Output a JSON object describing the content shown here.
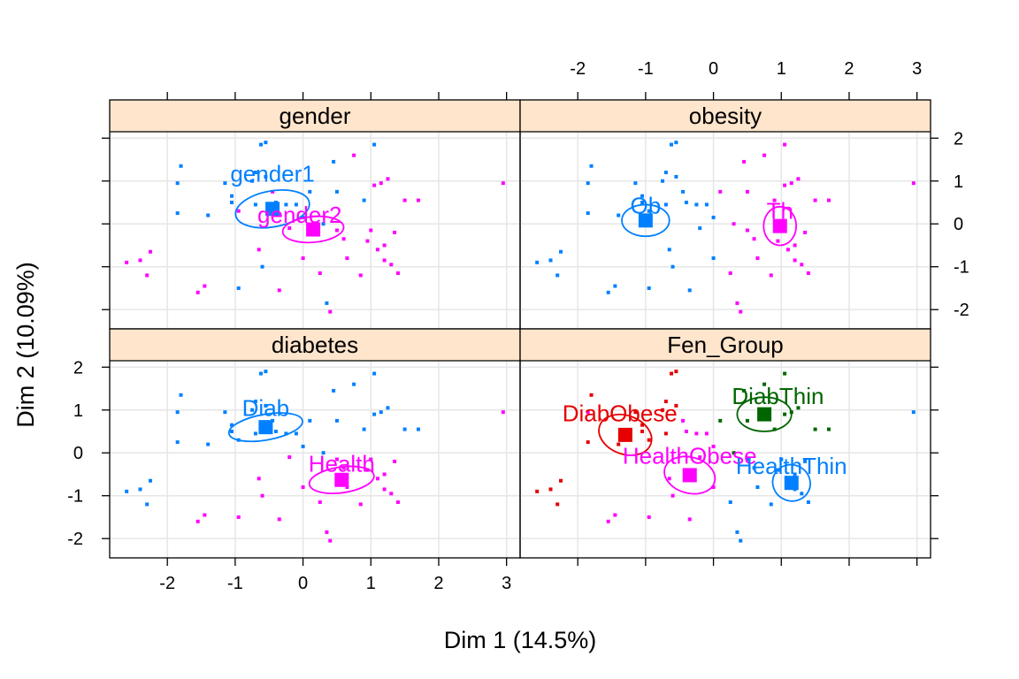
{
  "chart_data": {
    "type": "scatter",
    "xlabel": "Dim 1 (14.5%)",
    "ylabel": "Dim 2 (10.09%)",
    "xlim": [
      -2.85,
      3.2
    ],
    "ylim": [
      -2.45,
      2.15
    ],
    "x_ticks": [
      -2,
      -1,
      0,
      1,
      2,
      3
    ],
    "y_ticks": [
      -2,
      -1,
      0,
      1,
      2
    ],
    "x_tick_labels": [
      "-2",
      "-1",
      "0",
      "1",
      "2",
      "3"
    ],
    "y_tick_labels": [
      "-2",
      "-1",
      "0",
      "1",
      "2"
    ],
    "grid": true,
    "colors": {
      "strip_fill": "#ffe5cc",
      "grid": "#e6e6e6",
      "frame": "#000000",
      "blue": "#0080ff",
      "magenta": "#ff00ff",
      "red": "#e60000",
      "green": "#006600"
    },
    "panels": [
      {
        "title": "gender",
        "categories": [
          {
            "label": "gender1",
            "color": "#0080ff",
            "x": -0.45,
            "y": 0.35,
            "ellipse": {
              "rx": 0.55,
              "ry": 0.42,
              "angle_deg": -10
            },
            "label_dx": 0,
            "label_dy": 0.82
          },
          {
            "label": "gender2",
            "color": "#ff00ff",
            "x": 0.15,
            "y": -0.13,
            "ellipse": {
              "rx": 0.45,
              "ry": 0.3,
              "angle_deg": -5
            },
            "label_dx": -0.2,
            "label_dy": 0.34
          }
        ]
      },
      {
        "title": "obesity",
        "categories": [
          {
            "label": "Ob",
            "color": "#0080ff",
            "x": -1.0,
            "y": 0.08,
            "ellipse": {
              "rx": 0.35,
              "ry": 0.37,
              "angle_deg": 0
            },
            "label_dx": 0,
            "label_dy": 0.35
          },
          {
            "label": "Th",
            "color": "#ff00ff",
            "x": 0.98,
            "y": -0.05,
            "ellipse": {
              "rx": 0.24,
              "ry": 0.45,
              "angle_deg": 0
            },
            "label_dx": 0,
            "label_dy": 0.35
          }
        ]
      },
      {
        "title": "diabetes",
        "categories": [
          {
            "label": "Diab",
            "color": "#0080ff",
            "x": -0.55,
            "y": 0.6,
            "ellipse": {
              "rx": 0.55,
              "ry": 0.3,
              "angle_deg": -10
            },
            "label_dx": 0,
            "label_dy": 0.45
          },
          {
            "label": "Health",
            "color": "#ff00ff",
            "x": 0.57,
            "y": -0.63,
            "ellipse": {
              "rx": 0.48,
              "ry": 0.3,
              "angle_deg": -8
            },
            "label_dx": 0,
            "label_dy": 0.38
          }
        ]
      },
      {
        "title": "Fen_Group",
        "categories": [
          {
            "label": "DiabObese",
            "color": "#e60000",
            "x": -1.3,
            "y": 0.42,
            "ellipse": {
              "rx": 0.4,
              "ry": 0.45,
              "angle_deg": 20
            },
            "label_dx": -0.08,
            "label_dy": 0.5
          },
          {
            "label": "DiabThin",
            "color": "#006600",
            "x": 0.75,
            "y": 0.9,
            "ellipse": {
              "rx": 0.4,
              "ry": 0.4,
              "angle_deg": 0
            },
            "label_dx": 0.2,
            "label_dy": 0.42
          },
          {
            "label": "HealthObese",
            "color": "#ff00ff",
            "x": -0.35,
            "y": -0.52,
            "ellipse": {
              "rx": 0.38,
              "ry": 0.42,
              "angle_deg": 15
            },
            "label_dx": 0,
            "label_dy": 0.45
          },
          {
            "label": "HealthThin",
            "color": "#0080ff",
            "x": 1.15,
            "y": -0.7,
            "ellipse": {
              "rx": 0.28,
              "ry": 0.42,
              "angle_deg": 25
            },
            "label_dx": 0,
            "label_dy": 0.4
          }
        ]
      }
    ],
    "points_layout": [
      {
        "x": -2.6,
        "y": -0.9,
        "g": "DiabObese",
        "gender": 2,
        "obesity": "Ob",
        "diabetes": "Diab"
      },
      {
        "x": -2.4,
        "y": -0.85,
        "g": "DiabObese",
        "gender": 2,
        "obesity": "Ob",
        "diabetes": "Diab"
      },
      {
        "x": -2.3,
        "y": -1.2,
        "g": "DiabObese",
        "gender": 2,
        "obesity": "Ob",
        "diabetes": "Diab"
      },
      {
        "x": -2.25,
        "y": -0.65,
        "g": "DiabObese",
        "gender": 2,
        "obesity": "Ob",
        "diabetes": "Diab"
      },
      {
        "x": -1.85,
        "y": 0.95,
        "g": "HealthObese",
        "gender": 1,
        "obesity": "Ob",
        "diabetes": "Diab"
      },
      {
        "x": -1.8,
        "y": 1.35,
        "g": "DiabObese",
        "gender": 1,
        "obesity": "Ob",
        "diabetes": "Diab"
      },
      {
        "x": -1.85,
        "y": 0.25,
        "g": "DiabObese",
        "gender": 1,
        "obesity": "Ob",
        "diabetes": "Diab"
      },
      {
        "x": -1.45,
        "y": -1.45,
        "g": "HealthObese",
        "gender": 2,
        "obesity": "Ob",
        "diabetes": "Health"
      },
      {
        "x": -1.55,
        "y": -1.6,
        "g": "HealthObese",
        "gender": 2,
        "obesity": "Ob",
        "diabetes": "Health"
      },
      {
        "x": -1.4,
        "y": 0.2,
        "g": "DiabObese",
        "gender": 1,
        "obesity": "Ob",
        "diabetes": "Diab"
      },
      {
        "x": -1.15,
        "y": 0.95,
        "g": "DiabObese",
        "gender": 1,
        "obesity": "Ob",
        "diabetes": "Diab"
      },
      {
        "x": -1.05,
        "y": 0.5,
        "g": "DiabObese",
        "gender": 1,
        "obesity": "Ob",
        "diabetes": "Diab"
      },
      {
        "x": -1.05,
        "y": 0.65,
        "g": "DiabObese",
        "gender": 1,
        "obesity": "Ob",
        "diabetes": "Diab"
      },
      {
        "x": -0.95,
        "y": -1.5,
        "g": "HealthObese",
        "gender": 1,
        "obesity": "Ob",
        "diabetes": "Health"
      },
      {
        "x": -0.95,
        "y": 0.3,
        "g": "DiabObese",
        "gender": 2,
        "obesity": "Ob",
        "diabetes": "Diab"
      },
      {
        "x": -0.75,
        "y": 1.0,
        "g": "DiabObese",
        "gender": 1,
        "obesity": "Ob",
        "diabetes": "Diab"
      },
      {
        "x": -0.7,
        "y": 1.2,
        "g": "DiabObese",
        "gender": 1,
        "obesity": "Ob",
        "diabetes": "Diab"
      },
      {
        "x": -0.7,
        "y": 0.45,
        "g": "DiabObese",
        "gender": 1,
        "obesity": "Ob",
        "diabetes": "Diab"
      },
      {
        "x": -0.62,
        "y": 1.85,
        "g": "DiabObese",
        "gender": 1,
        "obesity": "Ob",
        "diabetes": "Diab"
      },
      {
        "x": -0.65,
        "y": -0.6,
        "g": "HealthObese",
        "gender": 2,
        "obesity": "Ob",
        "diabetes": "Health"
      },
      {
        "x": -0.55,
        "y": 1.9,
        "g": "DiabObese",
        "gender": 1,
        "obesity": "Ob",
        "diabetes": "Diab"
      },
      {
        "x": -0.55,
        "y": 1.1,
        "g": "DiabObese",
        "gender": 1,
        "obesity": "Ob",
        "diabetes": "Diab"
      },
      {
        "x": -0.6,
        "y": -1.0,
        "g": "HealthObese",
        "gender": 1,
        "obesity": "Ob",
        "diabetes": "Health"
      },
      {
        "x": -0.45,
        "y": 0.75,
        "g": "HealthObese",
        "gender": 2,
        "obesity": "Ob",
        "diabetes": "Diab"
      },
      {
        "x": -0.4,
        "y": 0.5,
        "g": "HealthObese",
        "gender": 1,
        "obesity": "Ob",
        "diabetes": "Diab"
      },
      {
        "x": -0.35,
        "y": -1.55,
        "g": "HealthObese",
        "gender": 2,
        "obesity": "Ob",
        "diabetes": "Health"
      },
      {
        "x": -0.25,
        "y": 0.45,
        "g": "HealthObese",
        "gender": 1,
        "obesity": "Ob",
        "diabetes": "Diab"
      },
      {
        "x": -0.2,
        "y": -0.1,
        "g": "HealthObese",
        "gender": 2,
        "obesity": "Ob",
        "diabetes": "Health"
      },
      {
        "x": -0.1,
        "y": 0.45,
        "g": "HealthObese",
        "gender": 1,
        "obesity": "Ob",
        "diabetes": "Diab"
      },
      {
        "x": 0.0,
        "y": -0.8,
        "g": "HealthObese",
        "gender": 2,
        "obesity": "Ob",
        "diabetes": "Health"
      },
      {
        "x": 0.0,
        "y": 0.15,
        "g": "HealthObese",
        "gender": 1,
        "obesity": "Ob",
        "diabetes": "Diab"
      },
      {
        "x": 0.1,
        "y": 0.75,
        "g": "DiabThin",
        "gender": 1,
        "obesity": "Th",
        "diabetes": "Diab"
      },
      {
        "x": 0.25,
        "y": -1.15,
        "g": "HealthThin",
        "gender": 2,
        "obesity": "Th",
        "diabetes": "Health"
      },
      {
        "x": 0.3,
        "y": 0.0,
        "g": "DiabThin",
        "gender": 1,
        "obesity": "Th",
        "diabetes": "Diab"
      },
      {
        "x": 0.35,
        "y": -1.85,
        "g": "HealthThin",
        "gender": 1,
        "obesity": "Th",
        "diabetes": "Health"
      },
      {
        "x": 0.4,
        "y": -2.05,
        "g": "HealthThin",
        "gender": 2,
        "obesity": "Th",
        "diabetes": "Health"
      },
      {
        "x": 0.45,
        "y": 1.45,
        "g": "DiabThin",
        "gender": 1,
        "obesity": "Th",
        "diabetes": "Diab"
      },
      {
        "x": 0.5,
        "y": -0.15,
        "g": "HealthThin",
        "gender": 2,
        "obesity": "Th",
        "diabetes": "Health"
      },
      {
        "x": 0.5,
        "y": 0.75,
        "g": "DiabThin",
        "gender": 1,
        "obesity": "Th",
        "diabetes": "Diab"
      },
      {
        "x": 0.6,
        "y": -0.35,
        "g": "HealthThin",
        "gender": 2,
        "obesity": "Th",
        "diabetes": "Health"
      },
      {
        "x": 0.65,
        "y": -0.8,
        "g": "HealthThin",
        "gender": 2,
        "obesity": "Th",
        "diabetes": "Health"
      },
      {
        "x": 0.75,
        "y": 1.6,
        "g": "DiabThin",
        "gender": 2,
        "obesity": "Th",
        "diabetes": "Diab"
      },
      {
        "x": 0.85,
        "y": -1.2,
        "g": "HealthThin",
        "gender": 2,
        "obesity": "Th",
        "diabetes": "Health"
      },
      {
        "x": 0.9,
        "y": 0.55,
        "g": "DiabThin",
        "gender": 1,
        "obesity": "Th",
        "diabetes": "Diab"
      },
      {
        "x": 0.95,
        "y": -0.4,
        "g": "HealthThin",
        "gender": 2,
        "obesity": "Th",
        "diabetes": "Health"
      },
      {
        "x": 1.0,
        "y": -0.15,
        "g": "HealthThin",
        "gender": 2,
        "obesity": "Th",
        "diabetes": "Health"
      },
      {
        "x": 1.05,
        "y": 1.85,
        "g": "DiabThin",
        "gender": 1,
        "obesity": "Th",
        "diabetes": "Diab"
      },
      {
        "x": 1.05,
        "y": 0.9,
        "g": "DiabThin",
        "gender": 2,
        "obesity": "Th",
        "diabetes": "Diab"
      },
      {
        "x": 1.1,
        "y": -0.6,
        "g": "HealthThin",
        "gender": 2,
        "obesity": "Th",
        "diabetes": "Health"
      },
      {
        "x": 1.15,
        "y": 0.95,
        "g": "DiabThin",
        "gender": 2,
        "obesity": "Th",
        "diabetes": "Diab"
      },
      {
        "x": 1.2,
        "y": -0.5,
        "g": "HealthThin",
        "gender": 2,
        "obesity": "Th",
        "diabetes": "Health"
      },
      {
        "x": 1.2,
        "y": -0.85,
        "g": "HealthThin",
        "gender": 2,
        "obesity": "Th",
        "diabetes": "Health"
      },
      {
        "x": 1.25,
        "y": 1.05,
        "g": "DiabThin",
        "gender": 2,
        "obesity": "Th",
        "diabetes": "Diab"
      },
      {
        "x": 1.3,
        "y": -0.95,
        "g": "HealthThin",
        "gender": 2,
        "obesity": "Th",
        "diabetes": "Health"
      },
      {
        "x": 1.35,
        "y": -0.2,
        "g": "HealthThin",
        "gender": 2,
        "obesity": "Th",
        "diabetes": "Health"
      },
      {
        "x": 1.4,
        "y": -1.15,
        "g": "HealthThin",
        "gender": 2,
        "obesity": "Th",
        "diabetes": "Health"
      },
      {
        "x": 1.5,
        "y": 0.55,
        "g": "DiabThin",
        "gender": 2,
        "obesity": "Th",
        "diabetes": "Diab"
      },
      {
        "x": 1.7,
        "y": 0.55,
        "g": "DiabThin",
        "gender": 2,
        "obesity": "Th",
        "diabetes": "Diab"
      },
      {
        "x": 2.95,
        "y": 0.95,
        "g": "HealthThin",
        "gender": 2,
        "obesity": "Th",
        "diabetes": "Health"
      }
    ]
  }
}
